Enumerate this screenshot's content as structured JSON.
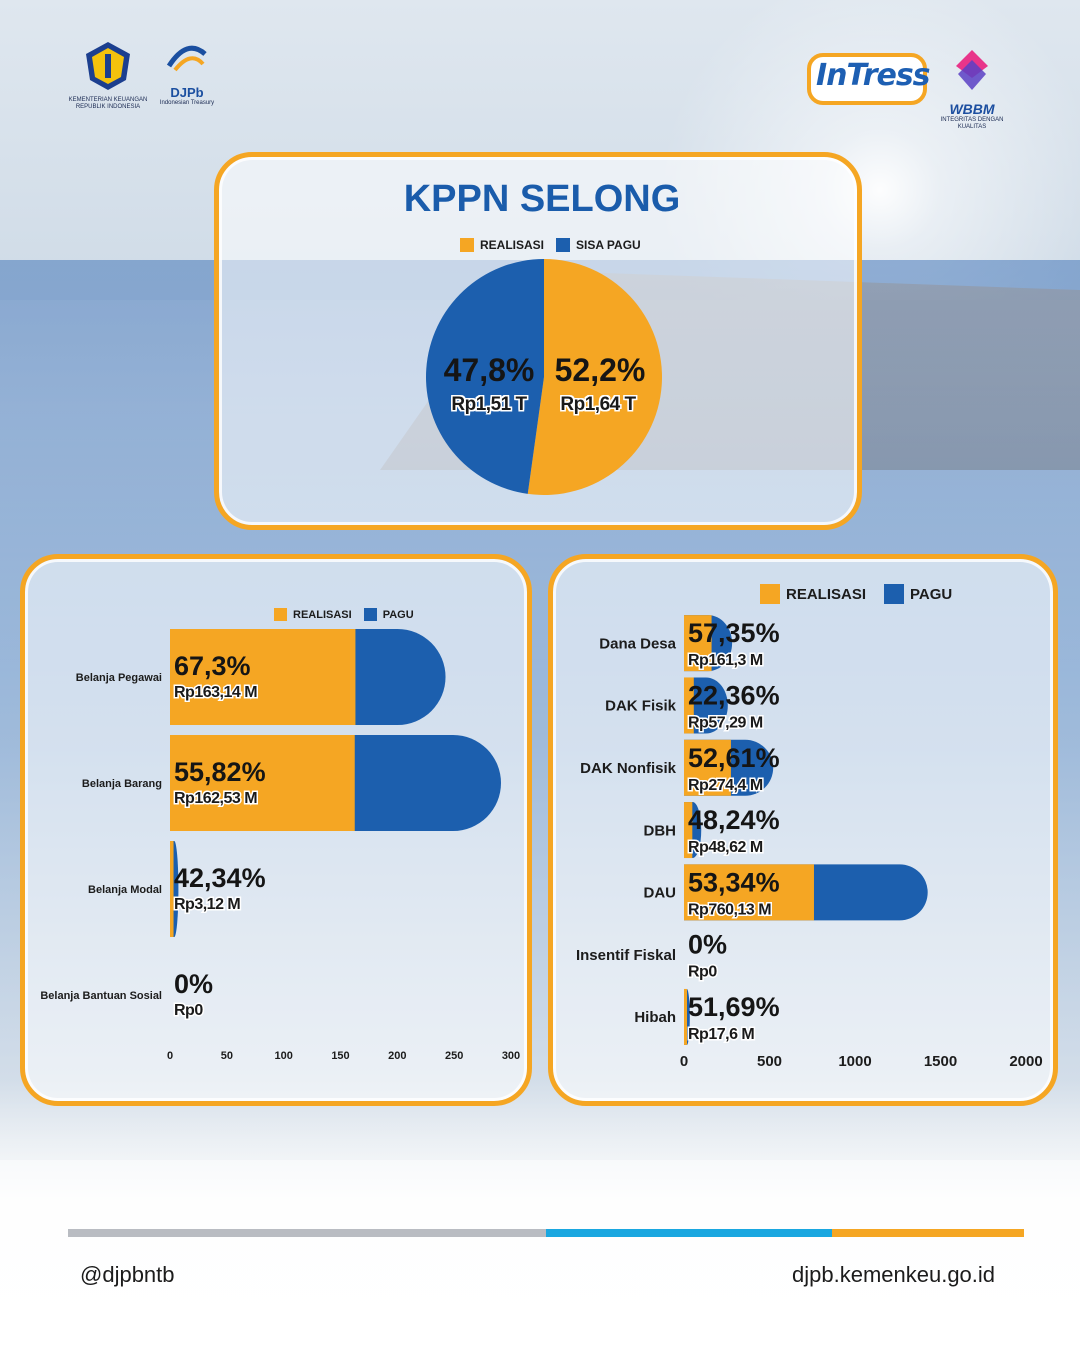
{
  "header": {
    "kemenkeu_logo_text": "KEMENTERIAN KEUANGAN REPUBLIK INDONESIA",
    "djpb_logo_text": "DJPb",
    "djpb_logo_subtext": "Indonesian Treasury",
    "intress_logo_text": "InTress",
    "wbbm_logo_text": "WBBM",
    "wbbm_logo_subtext": "INTEGRITAS DENGAN KUALITAS"
  },
  "colors": {
    "orange": "#f5a623",
    "blue": "#1c5fae",
    "title": "#1a5cab"
  },
  "chart_data": [
    {
      "type": "pie",
      "title": "KPPN SELONG",
      "legend": [
        "REALISASI",
        "SISA PAGU"
      ],
      "slices": [
        {
          "name": "REALISASI",
          "percent": 52.2,
          "percent_label": "52,2%",
          "amount_label": "Rp1,64 T",
          "color": "#f5a623"
        },
        {
          "name": "SISA PAGU",
          "percent": 47.8,
          "percent_label": "47,8%",
          "amount_label": "Rp1,51 T",
          "color": "#1c5fae"
        }
      ]
    },
    {
      "type": "bar",
      "orientation": "horizontal",
      "legend": [
        "REALISASI",
        "PAGU"
      ],
      "xlim": [
        0,
        300
      ],
      "xticks": [
        "0",
        "50",
        "100",
        "150",
        "200",
        "250",
        "300"
      ],
      "categories": [
        "Belanja Pegawai",
        "Belanja Barang",
        "Belanja Modal",
        "Belanja Bantuan Sosial"
      ],
      "series": [
        {
          "name": "REALISASI",
          "values": [
            163.14,
            162.53,
            3.12,
            0
          ]
        },
        {
          "name": "PAGU",
          "values": [
            242.4,
            291.2,
            7.4,
            0
          ]
        }
      ],
      "percent_labels": [
        "67,3%",
        "55,82%",
        "42,34%",
        "0%"
      ],
      "amount_labels": [
        "Rp163,14 M",
        "Rp162,53 M",
        "Rp3,12 M",
        "Rp0"
      ]
    },
    {
      "type": "bar",
      "orientation": "horizontal",
      "legend": [
        "REALISASI",
        "PAGU"
      ],
      "xlim": [
        0,
        2000
      ],
      "xticks": [
        "0",
        "500",
        "1000",
        "1500",
        "2000"
      ],
      "categories": [
        "Dana Desa",
        "DAK Fisik",
        "DAK Nonfisik",
        "DBH",
        "DAU",
        "Insentif Fiskal",
        "Hibah"
      ],
      "series": [
        {
          "name": "REALISASI",
          "values": [
            161.3,
            57.29,
            274.4,
            48.62,
            760.13,
            0,
            17.6
          ]
        },
        {
          "name": "PAGU",
          "values": [
            281.3,
            256.2,
            521.6,
            100.8,
            1425.1,
            0,
            34.0
          ]
        }
      ],
      "percent_labels": [
        "57,35%",
        "22,36%",
        "52,61%",
        "48,24%",
        "53,34%",
        "0%",
        "51,69%"
      ],
      "amount_labels": [
        "Rp161,3 M",
        "Rp57,29 M",
        "Rp274,4 M",
        "Rp48,62 M",
        "Rp760,13 M",
        "Rp0",
        "Rp17,6 M"
      ]
    }
  ],
  "footer": {
    "handle": "@djpbntb",
    "website": "djpb.kemenkeu.go.id"
  }
}
